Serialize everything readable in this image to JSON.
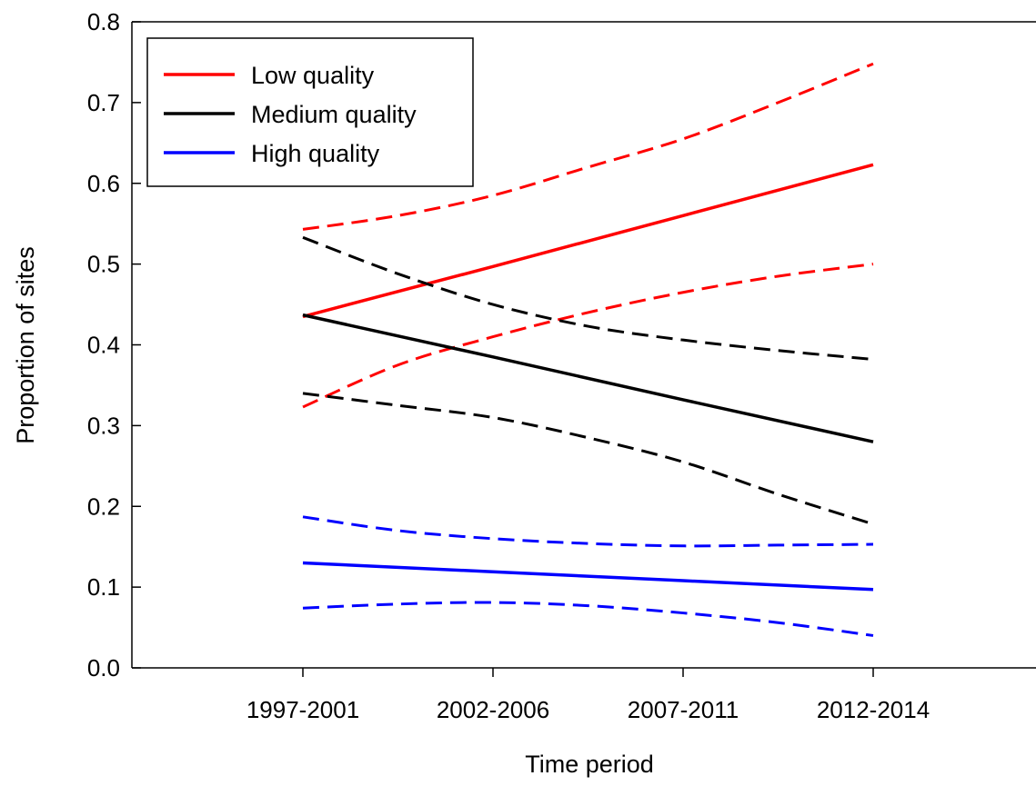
{
  "chart_data": {
    "type": "line",
    "title": "",
    "xlabel": "Time period",
    "ylabel": "Proportion of sites",
    "categories": [
      "1997-2001",
      "2002-2006",
      "2007-2011",
      "2012-2014"
    ],
    "ylim": [
      0.0,
      0.8
    ],
    "yticks": [
      "0.0",
      "0.1",
      "0.2",
      "0.3",
      "0.4",
      "0.5",
      "0.6",
      "0.7",
      "0.8"
    ],
    "grid": false,
    "legend_position": "top-left",
    "x_values_fine": [
      0,
      0.5,
      1,
      1.5,
      2,
      2.5,
      3
    ],
    "series": [
      {
        "name": "Low quality",
        "color": "#ff0000",
        "values": [
          0.435,
          0.497,
          0.56,
          0.623
        ],
        "lower_ci": [
          0.323,
          0.375,
          0.41,
          0.44,
          0.465,
          0.485,
          0.5
        ],
        "upper_ci": [
          0.543,
          0.56,
          0.585,
          0.62,
          0.655,
          0.7,
          0.748
        ]
      },
      {
        "name": "Medium quality",
        "color": "#000000",
        "values": [
          0.437,
          0.385,
          0.332,
          0.28
        ],
        "lower_ci": [
          0.34,
          0.325,
          0.31,
          0.285,
          0.255,
          0.215,
          0.178
        ],
        "upper_ci": [
          0.533,
          0.488,
          0.45,
          0.423,
          0.406,
          0.393,
          0.382
        ]
      },
      {
        "name": "High quality",
        "color": "#0000ff",
        "values": [
          0.13,
          0.119,
          0.108,
          0.097
        ],
        "lower_ci": [
          0.074,
          0.079,
          0.081,
          0.077,
          0.068,
          0.056,
          0.04
        ],
        "upper_ci": [
          0.187,
          0.17,
          0.16,
          0.154,
          0.151,
          0.152,
          0.153
        ]
      }
    ]
  }
}
